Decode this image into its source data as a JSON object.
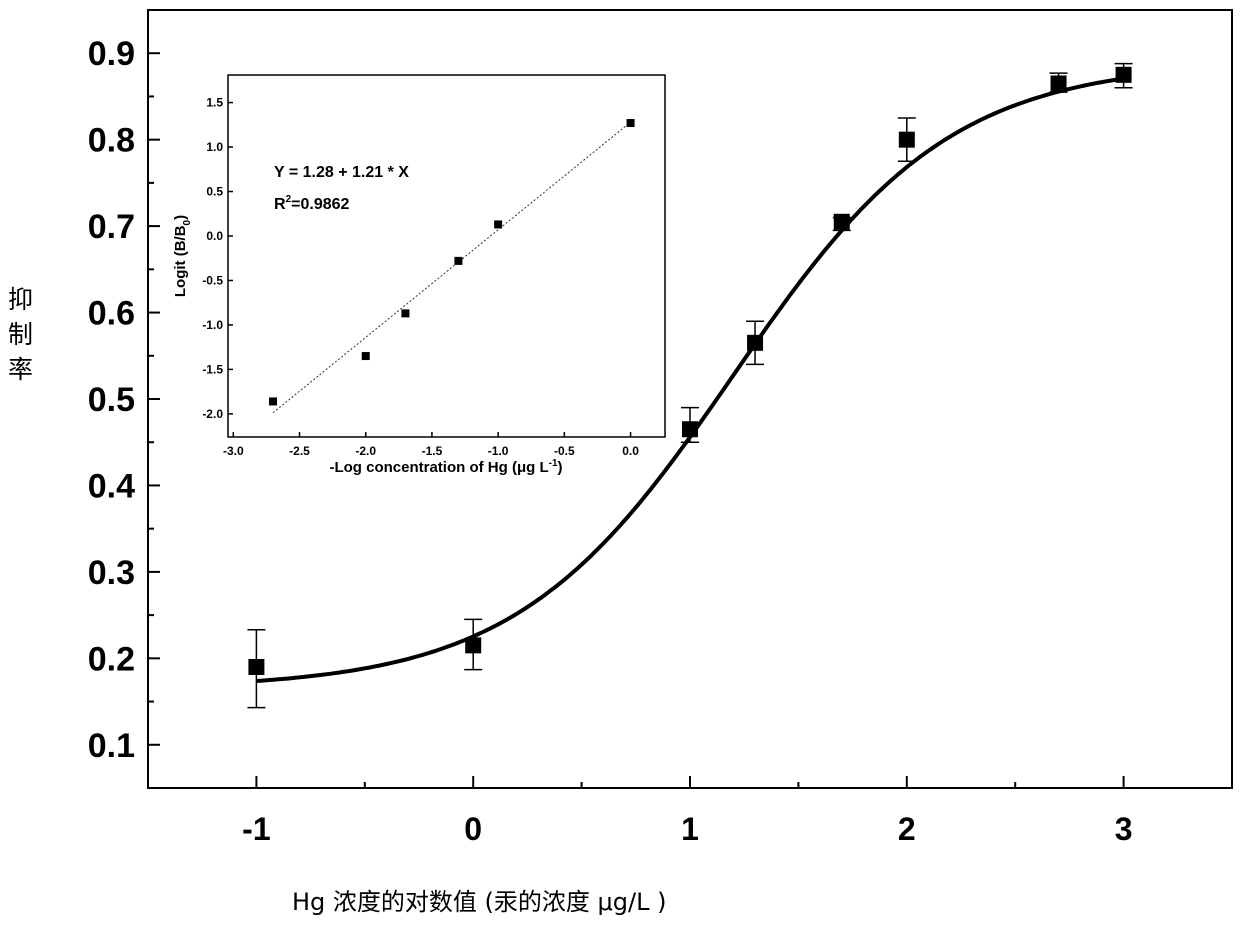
{
  "chart_data": [
    {
      "type": "scatter",
      "title": "",
      "xlabel": "Hg 浓度的对数值 (汞的浓度 μg/L )",
      "ylabel": "抑制率",
      "xlim": [
        -1.5,
        3.5
      ],
      "ylim": [
        0.05,
        0.95
      ],
      "xticks": [
        "-1",
        "0",
        "1",
        "2",
        "3"
      ],
      "yticks": [
        "0.1",
        "0.2",
        "0.3",
        "0.4",
        "0.5",
        "0.6",
        "0.7",
        "0.8",
        "0.9"
      ],
      "series": [
        {
          "name": "data",
          "x": [
            -1,
            0,
            1,
            1.3,
            1.7,
            2,
            2.7,
            3
          ],
          "y": [
            0.19,
            0.215,
            0.465,
            0.565,
            0.705,
            0.8,
            0.865,
            0.875
          ],
          "err_low": [
            0.143,
            0.187,
            0.45,
            0.54,
            0.695,
            0.775,
            0.855,
            0.86
          ],
          "err_high": [
            0.233,
            0.245,
            0.49,
            0.59,
            0.71,
            0.825,
            0.877,
            0.888
          ]
        }
      ],
      "fit": {
        "type": "logistic",
        "bottom": 0.165,
        "top": 0.89,
        "center": 1.2,
        "slope": 2.0
      }
    },
    {
      "type": "scatter",
      "title": "",
      "xlabel": "-Log  concentration of Hg (μg L",
      "xlabel_sup": "-1",
      "xlabel_end": ")",
      "ylabel": "Logit (B/B",
      "ylabel_sub": "0",
      "ylabel_end": ")",
      "xlim": [
        -3.04,
        0.26
      ],
      "ylim": [
        -2.26,
        1.81
      ],
      "xticks": [
        "-3.0",
        "-2.5",
        "-2.0",
        "-1.5",
        "-1.0",
        "-0.5",
        "0.0"
      ],
      "yticks": [
        "-2.0",
        "-1.5",
        "-1.0",
        "-0.5",
        "0.0",
        "0.5",
        "1.0",
        "1.5"
      ],
      "series": [
        {
          "name": "data",
          "x": [
            -2.7,
            -2.0,
            -1.7,
            -1.3,
            -1.0,
            0.0
          ],
          "y": [
            -1.86,
            -1.35,
            -0.87,
            -0.28,
            0.13,
            1.27
          ]
        }
      ],
      "fit": {
        "type": "linear",
        "intercept": 1.28,
        "slope": 1.21,
        "x_range": [
          -2.7,
          0
        ]
      },
      "equation": "Y = 1.28 + 1.21 * X",
      "r2_prefix": "R",
      "r2_sup": "2",
      "r2_value": "=0.9862"
    }
  ]
}
